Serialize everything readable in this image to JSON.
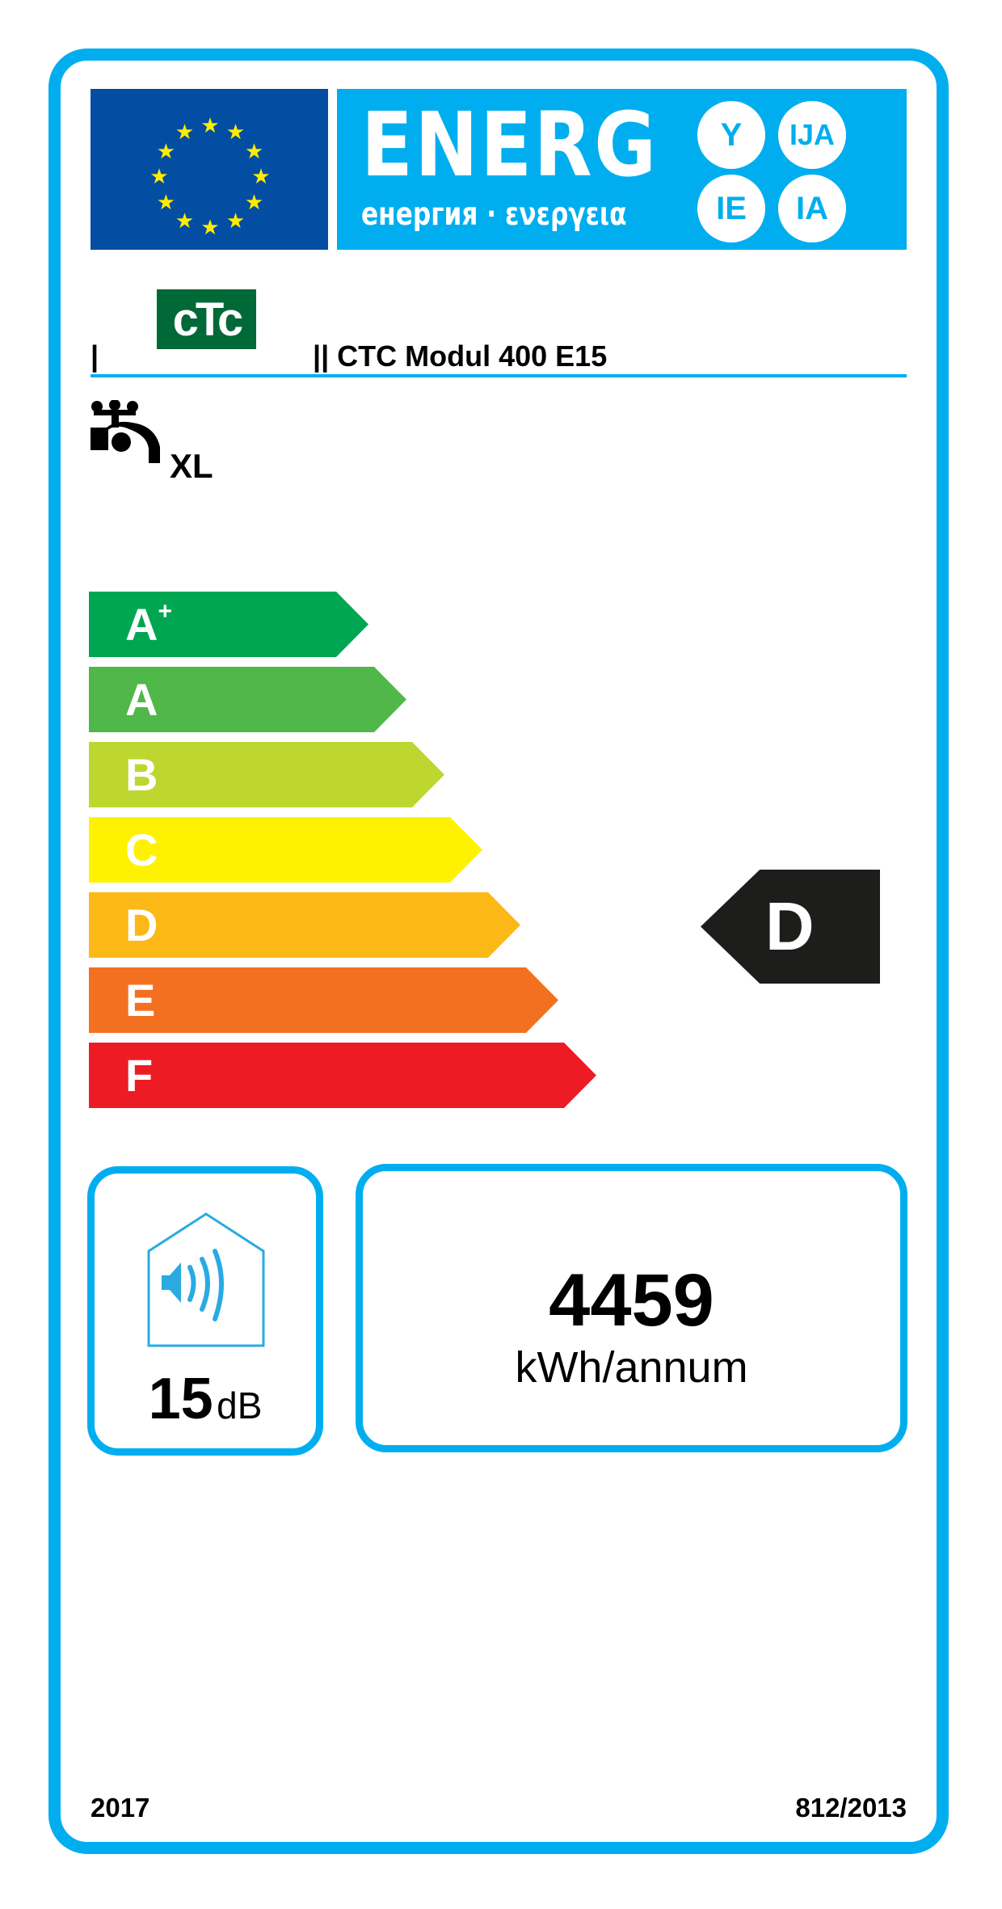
{
  "header": {
    "title": "ENERG",
    "subtitle": "енергия · ενεργεια",
    "suffixes": [
      "Y",
      "IJA",
      "IE",
      "IA"
    ],
    "colors": {
      "eu_blue": "#034ea2",
      "label_blue": "#00aeef",
      "star": "#ffed00"
    }
  },
  "supplier": {
    "logo_text": "cTc",
    "logo_color": "#006937",
    "supplier_name": "|",
    "model": "|| CTC Modul 400 E15"
  },
  "load_profile": {
    "icon": "water-tap-icon",
    "value": "XL"
  },
  "scale": [
    {
      "label": "A",
      "sup": "+",
      "color": "#00a651"
    },
    {
      "label": "A",
      "sup": "",
      "color": "#50b848"
    },
    {
      "label": "B",
      "sup": "",
      "color": "#bed630"
    },
    {
      "label": "C",
      "sup": "",
      "color": "#fff200"
    },
    {
      "label": "D",
      "sup": "",
      "color": "#fbb817"
    },
    {
      "label": "E",
      "sup": "",
      "color": "#f37021"
    },
    {
      "label": "F",
      "sup": "",
      "color": "#ed1c24"
    }
  ],
  "rating": {
    "class": "D",
    "color": "#1d1d1b"
  },
  "noise": {
    "icon": "speaker-house-icon",
    "value": "15",
    "unit": "dB"
  },
  "energy": {
    "value": "4459",
    "unit": "kWh/annum"
  },
  "footer": {
    "year": "2017",
    "regulation": "812/2013"
  }
}
